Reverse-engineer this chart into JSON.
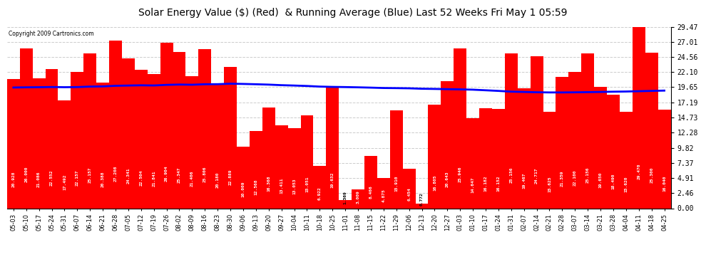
{
  "title": "Solar Energy Value ($) (Red)  & Running Average (Blue) Last 52 Weeks Fri May 1 05:59",
  "copyright": "Copyright 2009 Cartronics.com",
  "bar_color": "#ff0000",
  "line_color": "#0000ff",
  "background_color": "#ffffff",
  "grid_color": "#cccccc",
  "yticks": [
    0.0,
    2.46,
    4.91,
    7.37,
    9.82,
    12.28,
    14.73,
    17.19,
    19.65,
    22.1,
    24.56,
    27.01,
    29.47
  ],
  "categories": [
    "05-03",
    "05-10",
    "05-17",
    "05-24",
    "05-31",
    "06-07",
    "06-14",
    "06-21",
    "06-28",
    "07-05",
    "07-12",
    "07-19",
    "07-26",
    "08-02",
    "08-09",
    "08-16",
    "08-23",
    "08-30",
    "09-06",
    "09-13",
    "09-20",
    "09-27",
    "10-04",
    "10-11",
    "10-18",
    "10-25",
    "11-01",
    "11-08",
    "11-15",
    "11-22",
    "11-29",
    "12-06",
    "12-13",
    "12-20",
    "12-27",
    "01-03",
    "01-10",
    "01-17",
    "01-24",
    "01-31",
    "02-07",
    "02-14",
    "02-21",
    "02-28",
    "03-07",
    "03-14",
    "03-21",
    "03-28",
    "04-04",
    "04-11",
    "04-18",
    "04-25"
  ],
  "values": [
    20.928,
    26.0,
    21.086,
    22.552,
    17.492,
    22.157,
    25.157,
    20.388,
    27.208,
    24.341,
    22.504,
    21.841,
    26.904,
    25.347,
    21.406,
    25.806,
    20.18,
    22.889,
    10.009,
    12.568,
    16.368,
    13.411,
    13.053,
    15.051,
    6.922,
    19.632,
    1.369,
    3.009,
    8.466,
    4.875,
    15.91,
    6.454,
    0.772,
    16.805,
    20.643,
    25.946,
    14.647,
    16.182,
    16.152,
    25.156,
    19.467,
    24.717,
    15.625,
    21.359,
    22.1,
    25.156,
    19.65,
    18.49,
    15.62,
    29.47,
    25.3,
    16.04
  ],
  "running_avg": [
    19.6,
    19.63,
    19.65,
    19.68,
    19.65,
    19.67,
    19.75,
    19.78,
    19.88,
    19.92,
    19.96,
    19.93,
    20.03,
    20.08,
    20.05,
    20.13,
    20.14,
    20.22,
    20.18,
    20.13,
    20.07,
    19.98,
    19.92,
    19.85,
    19.75,
    19.7,
    19.67,
    19.63,
    19.58,
    19.52,
    19.5,
    19.47,
    19.4,
    19.37,
    19.33,
    19.3,
    19.25,
    19.15,
    19.05,
    18.93,
    18.88,
    18.83,
    18.8,
    18.8,
    18.82,
    18.85,
    18.88,
    18.92,
    18.95,
    19.0,
    19.05,
    19.1
  ],
  "ymax": 29.47,
  "title_fontsize": 10,
  "tick_fontsize": 7,
  "xlabel_fontsize": 6,
  "label_fontsize": 4.5
}
